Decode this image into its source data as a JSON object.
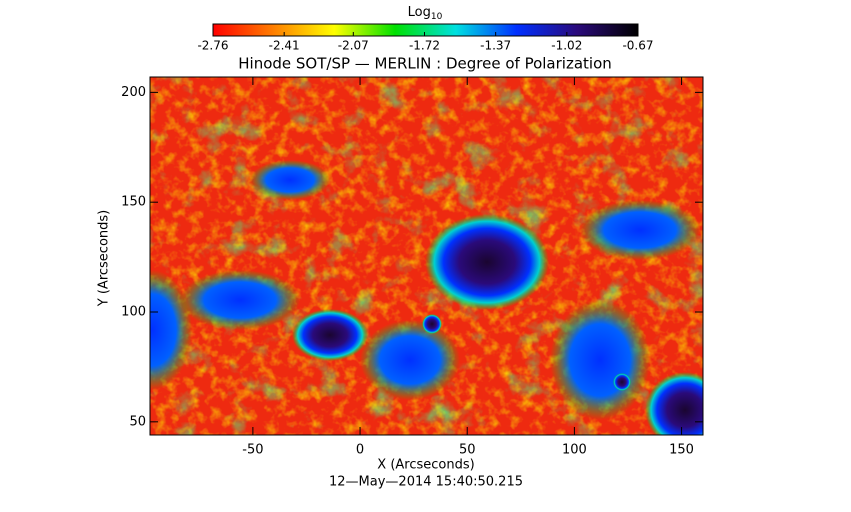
{
  "chart_data": {
    "type": "heatmap",
    "title": "Hinode SOT/SP — MERLIN : Degree of Polarization",
    "x_label": "X (Arcseconds)",
    "y_label": "Y (Arcseconds)",
    "timestamp": "12—May—2014 15:40:50.215",
    "xlim": [
      -98,
      160
    ],
    "xticks": [
      -50,
      0,
      50,
      100,
      150
    ],
    "ylim": [
      44,
      207
    ],
    "yticks": [
      50,
      100,
      150,
      200
    ],
    "colorbar": {
      "title": "Log",
      "title_sub": "10",
      "lim": [
        -2.76,
        -0.67
      ],
      "ticks": [
        -2.76,
        -2.41,
        -2.07,
        -1.72,
        -1.37,
        -1.02,
        -0.67
      ],
      "colormap": [
        "#ff0000",
        "#ff7f00",
        "#ffff00",
        "#00e000",
        "#00e0e0",
        "#0030ff",
        "#2a0a7a",
        "#000000"
      ]
    }
  }
}
